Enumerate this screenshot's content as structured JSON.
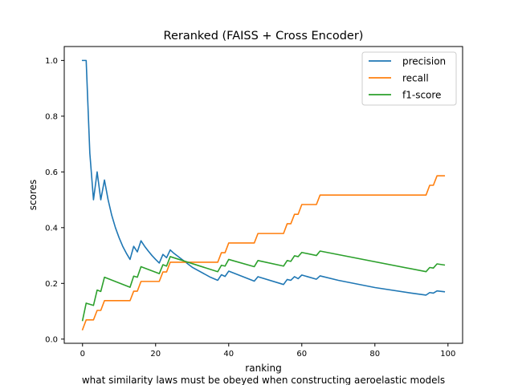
{
  "chart_data": {
    "type": "line",
    "title": "Reranked (FAISS + Cross Encoder)",
    "xlabel": "ranking",
    "ylabel": "scores",
    "caption": "what similarity laws must be obeyed when constructing aeroelastic models",
    "xlim": [
      -5,
      104
    ],
    "ylim": [
      -0.015,
      1.05
    ],
    "xticks": [
      0,
      20,
      40,
      60,
      80,
      100
    ],
    "yticks": [
      0.0,
      0.2,
      0.4,
      0.6,
      0.8,
      1.0
    ],
    "xtick_labels": [
      "0",
      "20",
      "40",
      "60",
      "80",
      "100"
    ],
    "ytick_labels": [
      "0.0",
      "0.2",
      "0.4",
      "0.6",
      "0.8",
      "1.0"
    ],
    "legend_position": "top-right",
    "grid": false,
    "series": [
      {
        "name": "precision",
        "color": "#1f77b4",
        "points": [
          [
            0,
            1.0
          ],
          [
            1,
            1.0
          ],
          [
            2,
            0.667
          ],
          [
            3,
            0.5
          ],
          [
            4,
            0.6
          ],
          [
            5,
            0.5
          ],
          [
            6,
            0.571
          ],
          [
            7,
            0.5
          ],
          [
            8,
            0.444
          ],
          [
            9,
            0.4
          ],
          [
            10,
            0.364
          ],
          [
            11,
            0.333
          ],
          [
            12,
            0.308
          ],
          [
            13,
            0.286
          ],
          [
            14,
            0.333
          ],
          [
            15,
            0.313
          ],
          [
            16,
            0.353
          ],
          [
            17,
            0.333
          ],
          [
            18,
            0.316
          ],
          [
            19,
            0.3
          ],
          [
            20,
            0.286
          ],
          [
            21,
            0.273
          ],
          [
            22,
            0.304
          ],
          [
            23,
            0.292
          ],
          [
            24,
            0.32
          ],
          [
            25,
            0.308
          ],
          [
            30,
            0.258
          ],
          [
            35,
            0.222
          ],
          [
            37,
            0.211
          ],
          [
            38,
            0.231
          ],
          [
            39,
            0.225
          ],
          [
            40,
            0.244
          ],
          [
            47,
            0.208
          ],
          [
            48,
            0.224
          ],
          [
            55,
            0.196
          ],
          [
            56,
            0.214
          ],
          [
            57,
            0.211
          ],
          [
            58,
            0.224
          ],
          [
            59,
            0.217
          ],
          [
            60,
            0.23
          ],
          [
            64,
            0.215
          ],
          [
            65,
            0.227
          ],
          [
            70,
            0.211
          ],
          [
            80,
            0.185
          ],
          [
            90,
            0.165
          ],
          [
            94,
            0.158
          ],
          [
            95,
            0.167
          ],
          [
            96,
            0.165
          ],
          [
            97,
            0.173
          ],
          [
            99,
            0.17
          ]
        ]
      },
      {
        "name": "recall",
        "color": "#ff7f0e",
        "points": [
          [
            0,
            0.034
          ],
          [
            1,
            0.069
          ],
          [
            3,
            0.069
          ],
          [
            4,
            0.103
          ],
          [
            5,
            0.103
          ],
          [
            6,
            0.138
          ],
          [
            13,
            0.138
          ],
          [
            14,
            0.172
          ],
          [
            15,
            0.172
          ],
          [
            16,
            0.207
          ],
          [
            21,
            0.207
          ],
          [
            22,
            0.241
          ],
          [
            23,
            0.241
          ],
          [
            24,
            0.276
          ],
          [
            37,
            0.276
          ],
          [
            38,
            0.31
          ],
          [
            39,
            0.31
          ],
          [
            40,
            0.345
          ],
          [
            47,
            0.345
          ],
          [
            48,
            0.379
          ],
          [
            55,
            0.379
          ],
          [
            56,
            0.414
          ],
          [
            57,
            0.414
          ],
          [
            58,
            0.448
          ],
          [
            59,
            0.448
          ],
          [
            60,
            0.483
          ],
          [
            64,
            0.483
          ],
          [
            65,
            0.517
          ],
          [
            94,
            0.517
          ],
          [
            95,
            0.552
          ],
          [
            96,
            0.552
          ],
          [
            97,
            0.586
          ],
          [
            99,
            0.586
          ]
        ]
      },
      {
        "name": "f1-score",
        "color": "#2ca02c",
        "points": [
          [
            0,
            0.067
          ],
          [
            1,
            0.129
          ],
          [
            2,
            0.125
          ],
          [
            3,
            0.121
          ],
          [
            4,
            0.176
          ],
          [
            5,
            0.171
          ],
          [
            6,
            0.222
          ],
          [
            13,
            0.186
          ],
          [
            14,
            0.226
          ],
          [
            15,
            0.222
          ],
          [
            16,
            0.26
          ],
          [
            21,
            0.235
          ],
          [
            22,
            0.267
          ],
          [
            23,
            0.262
          ],
          [
            24,
            0.296
          ],
          [
            37,
            0.242
          ],
          [
            38,
            0.265
          ],
          [
            39,
            0.262
          ],
          [
            40,
            0.286
          ],
          [
            47,
            0.26
          ],
          [
            48,
            0.282
          ],
          [
            55,
            0.262
          ],
          [
            56,
            0.282
          ],
          [
            57,
            0.279
          ],
          [
            58,
            0.299
          ],
          [
            59,
            0.296
          ],
          [
            60,
            0.311
          ],
          [
            64,
            0.3
          ],
          [
            65,
            0.316
          ],
          [
            94,
            0.242
          ],
          [
            95,
            0.257
          ],
          [
            96,
            0.255
          ],
          [
            97,
            0.27
          ],
          [
            99,
            0.266
          ]
        ]
      }
    ]
  }
}
